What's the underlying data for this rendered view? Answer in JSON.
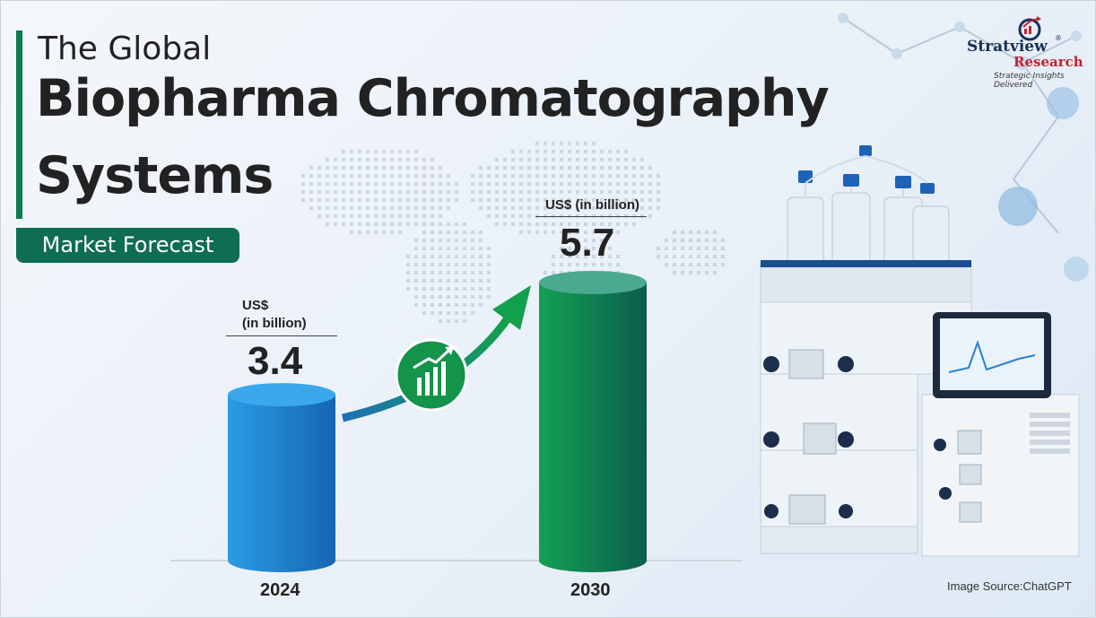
{
  "header": {
    "title_line1": "The Global",
    "title_line2": "Biopharma Chromatography",
    "title_line3": "Systems",
    "subtitle": "Market Forecast"
  },
  "logo": {
    "name": "Stratview",
    "registered": "®",
    "sub": "Research",
    "tagline": "Strategic Insights Delivered"
  },
  "chart_data": {
    "type": "bar",
    "categories": [
      "2024",
      "2030"
    ],
    "values": [
      3.4,
      5.7
    ],
    "value_labels": [
      "3.4",
      "5.7"
    ],
    "unit_labels": [
      "US$",
      "US$ (in billion)"
    ],
    "unit_labels_line2": [
      "(in billion)",
      ""
    ],
    "colors": [
      "#1f7fc8",
      "#0e8f4e"
    ],
    "trend_arrow": true
  },
  "footer": {
    "source": "Image Source:ChatGPT"
  },
  "icons": {
    "growth": "bar-chart-up-icon",
    "logo": "stratview-logo-icon"
  }
}
